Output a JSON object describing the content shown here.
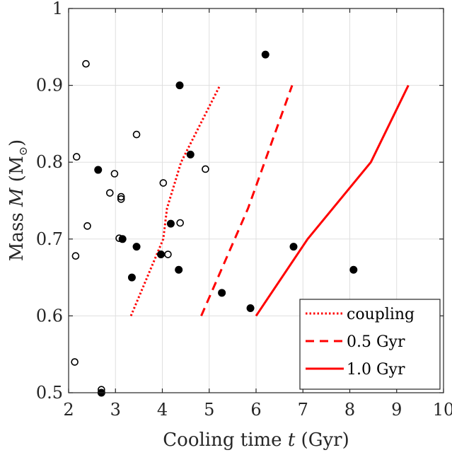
{
  "chart_data": {
    "type": "scatter",
    "title": "",
    "xlabel_parts": [
      "Cooling time ",
      "t",
      " (Gyr)"
    ],
    "ylabel_parts": [
      "Mass ",
      "M",
      " (M",
      "⊙",
      ")"
    ],
    "xlim": [
      2,
      10
    ],
    "ylim": [
      0.5,
      1
    ],
    "xticks": [
      2,
      3,
      4,
      5,
      6,
      7,
      8,
      9,
      10
    ],
    "yticks": [
      0.5,
      0.6,
      0.7,
      0.8,
      0.9,
      1
    ],
    "xtick_labels": [
      "2",
      "3",
      "4",
      "5",
      "6",
      "7",
      "8",
      "9",
      "10"
    ],
    "ytick_labels": [
      "0.5",
      "0.6",
      "0.7",
      "0.8",
      "0.9",
      "1"
    ],
    "grid": true,
    "legend_position": "bottom-right",
    "colors": {
      "line": "#ff0000",
      "marker": "#000000"
    },
    "lines": [
      {
        "name": "coupling",
        "style": "dotted",
        "points": [
          [
            3.33,
            0.6
          ],
          [
            4.02,
            0.7
          ],
          [
            4.1,
            0.74
          ],
          [
            4.4,
            0.8
          ],
          [
            5.23,
            0.9
          ]
        ]
      },
      {
        "name": "0.5 Gyr",
        "style": "dashed",
        "points": [
          [
            4.83,
            0.6
          ],
          [
            5.83,
            0.74
          ],
          [
            6.77,
            0.9
          ]
        ]
      },
      {
        "name": "1.0 Gyr",
        "style": "solid",
        "points": [
          [
            6.0,
            0.6
          ],
          [
            7.1,
            0.7
          ],
          [
            8.45,
            0.8
          ],
          [
            9.25,
            0.9
          ]
        ]
      }
    ],
    "filled_points": [
      [
        2.63,
        0.79
      ],
      [
        2.7,
        0.5
      ],
      [
        3.15,
        0.7
      ],
      [
        3.35,
        0.65
      ],
      [
        3.45,
        0.69
      ],
      [
        3.97,
        0.68
      ],
      [
        4.18,
        0.72
      ],
      [
        4.35,
        0.66
      ],
      [
        4.37,
        0.9
      ],
      [
        4.6,
        0.81
      ],
      [
        5.27,
        0.63
      ],
      [
        5.88,
        0.61
      ],
      [
        6.2,
        0.94
      ],
      [
        6.8,
        0.69
      ],
      [
        8.08,
        0.66
      ]
    ],
    "open_points": [
      [
        2.13,
        0.54
      ],
      [
        2.15,
        0.678
      ],
      [
        2.17,
        0.807
      ],
      [
        2.37,
        0.928
      ],
      [
        2.4,
        0.717
      ],
      [
        2.7,
        0.504
      ],
      [
        2.88,
        0.76
      ],
      [
        2.98,
        0.785
      ],
      [
        3.08,
        0.701
      ],
      [
        3.12,
        0.755
      ],
      [
        3.12,
        0.752
      ],
      [
        3.45,
        0.836
      ],
      [
        4.02,
        0.773
      ],
      [
        4.12,
        0.68
      ],
      [
        4.38,
        0.721
      ],
      [
        4.92,
        0.791
      ]
    ]
  }
}
